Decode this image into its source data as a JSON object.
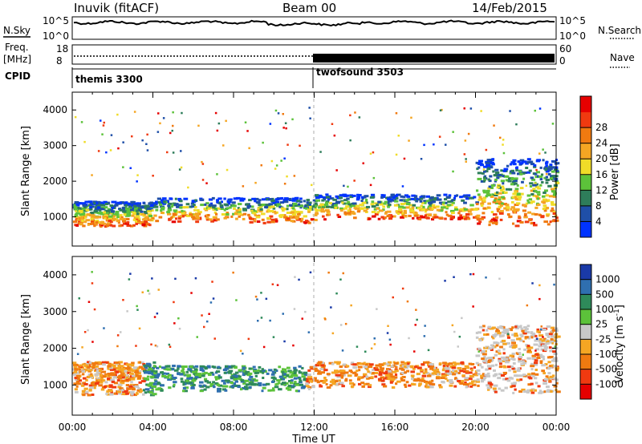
{
  "header": {
    "station": "Inuvik (fitACF)",
    "beam": "Beam 00",
    "date": "14/Feb/2015"
  },
  "top_panels": {
    "nsky_label": "N.Sky",
    "nsky_ticks": [
      "10^5",
      "10^0"
    ],
    "nsearch_label": "N.Search",
    "nsearch_ticks": [
      "10^5",
      "10^0"
    ],
    "freq_label": "Freq.",
    "freq_unit": "[MHz]",
    "freq_ticks": [
      "18",
      "8"
    ],
    "nave_label": "Nave",
    "nave_ticks": [
      "60",
      "0"
    ],
    "cpid_label": "CPID",
    "cpid_segments": [
      {
        "name": "themis 3300",
        "start_hour": 0
      },
      {
        "name": "twofsound 3503",
        "start_hour": 12
      }
    ]
  },
  "chart_data": [
    {
      "type": "heatmap",
      "title": "",
      "ylabel": "Slant Range [km]",
      "xlabel": "",
      "x_range_hours": [
        0,
        24
      ],
      "ylim": [
        180,
        4500
      ],
      "yticks": [
        "1000",
        "2000",
        "3000",
        "4000"
      ],
      "colorbar": {
        "label": "Power [dB]",
        "ticks": [
          "4",
          "8",
          "12",
          "16",
          "20",
          "24",
          "28"
        ],
        "colors": [
          "#0033ff",
          "#1f4fa8",
          "#2e7d5a",
          "#5cc23a",
          "#f0dc28",
          "#f5a623",
          "#f07a10",
          "#f03a10",
          "#e60000"
        ]
      },
      "echo_bands": [
        {
          "x": [
            0,
            4
          ],
          "y": [
            700,
            1400
          ],
          "value": "24-28 dB"
        },
        {
          "x": [
            4,
            12
          ],
          "y": [
            800,
            1500
          ],
          "value": "8-20 dB"
        },
        {
          "x": [
            12,
            20
          ],
          "y": [
            900,
            1600
          ],
          "value": "8-20 dB"
        },
        {
          "x": [
            20,
            24
          ],
          "y": [
            700,
            2600
          ],
          "value": "8-28 dB"
        }
      ]
    },
    {
      "type": "heatmap",
      "title": "",
      "ylabel": "Slant Range [km]",
      "xlabel": "Time UT",
      "x_range_hours": [
        0,
        24
      ],
      "xticks": [
        "00:00",
        "04:00",
        "08:00",
        "12:00",
        "16:00",
        "20:00",
        "00:00"
      ],
      "ylim": [
        180,
        4500
      ],
      "yticks": [
        "1000",
        "2000",
        "3000",
        "4000"
      ],
      "colorbar": {
        "label": "Velocity [m s^-1]",
        "ticks": [
          "1000",
          "500",
          "100",
          "25",
          "-25",
          "-100",
          "-500",
          "-1000"
        ],
        "colors": [
          "#1a3aa8",
          "#2f6fb0",
          "#2e8a5a",
          "#5cc23a",
          "#c8c8c8",
          "#f5a623",
          "#f07a10",
          "#f03a10",
          "#e60000"
        ]
      },
      "echo_bands": [
        {
          "x": [
            0,
            4
          ],
          "y": [
            700,
            1600
          ],
          "value": "-100 to -500 m/s"
        },
        {
          "x": [
            4,
            12
          ],
          "y": [
            800,
            1500
          ],
          "value": "100 to 500 m/s"
        },
        {
          "x": [
            12,
            20
          ],
          "y": [
            900,
            1600
          ],
          "value": "-100 to -500 m/s"
        },
        {
          "x": [
            20,
            24
          ],
          "y": [
            700,
            2600
          ],
          "value": "-25 to -500 m/s"
        }
      ]
    }
  ]
}
